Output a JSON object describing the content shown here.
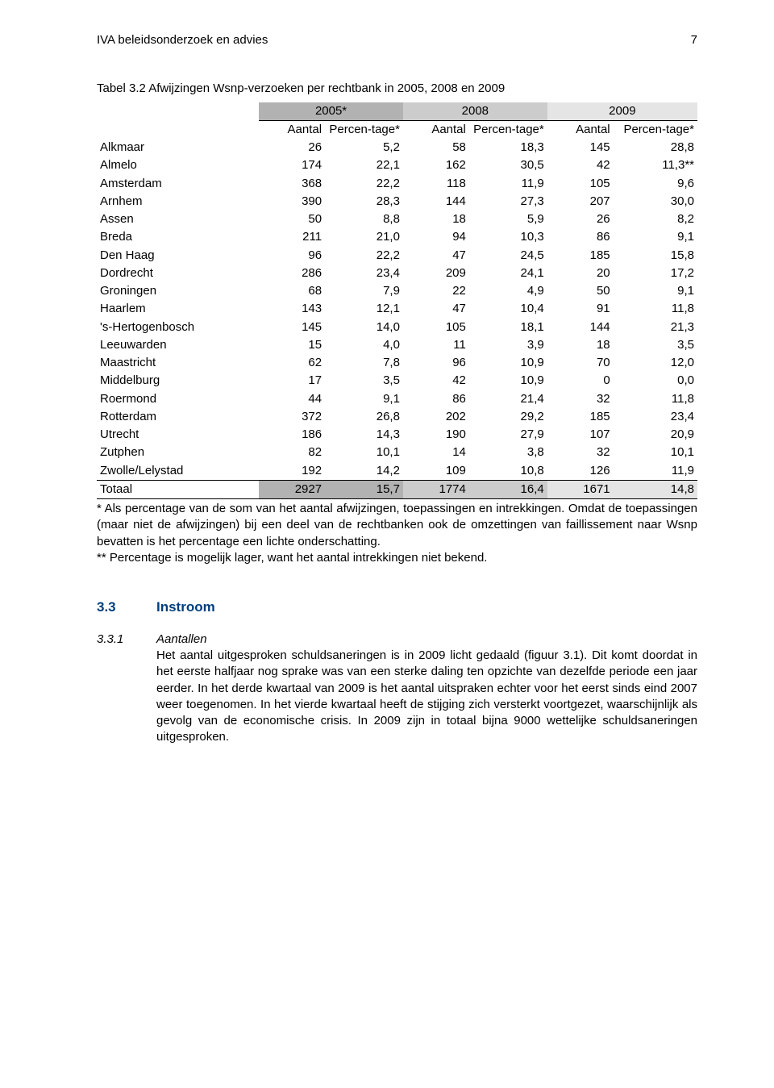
{
  "running_head_left": "IVA beleidsonderzoek en advies",
  "running_head_right": "7",
  "table": {
    "caption": "Tabel 3.2 Afwijzingen Wsnp-verzoeken per rechtbank in 2005, 2008 en 2009",
    "years": [
      "2005*",
      "2008",
      "2009"
    ],
    "subheads": [
      "Aantal",
      "Percen-tage*",
      "Aantal",
      "Percen-tage*",
      "Aantal",
      "Percen-tage*"
    ],
    "year_colors": [
      "#b2b2b2",
      "#cccccc",
      "#e5e5e5"
    ],
    "rows": [
      {
        "label": "Alkmaar",
        "v": [
          "26",
          "5,2",
          "58",
          "18,3",
          "145",
          "28,8"
        ]
      },
      {
        "label": "Almelo",
        "v": [
          "174",
          "22,1",
          "162",
          "30,5",
          "42",
          "11,3**"
        ]
      },
      {
        "label": "Amsterdam",
        "v": [
          "368",
          "22,2",
          "118",
          "11,9",
          "105",
          "9,6"
        ]
      },
      {
        "label": "Arnhem",
        "v": [
          "390",
          "28,3",
          "144",
          "27,3",
          "207",
          "30,0"
        ]
      },
      {
        "label": "Assen",
        "v": [
          "50",
          "8,8",
          "18",
          "5,9",
          "26",
          "8,2"
        ]
      },
      {
        "label": "Breda",
        "v": [
          "211",
          "21,0",
          "94",
          "10,3",
          "86",
          "9,1"
        ]
      },
      {
        "label": "Den Haag",
        "v": [
          "96",
          "22,2",
          "47",
          "24,5",
          "185",
          "15,8"
        ]
      },
      {
        "label": "Dordrecht",
        "v": [
          "286",
          "23,4",
          "209",
          "24,1",
          "20",
          "17,2"
        ]
      },
      {
        "label": "Groningen",
        "v": [
          "68",
          "7,9",
          "22",
          "4,9",
          "50",
          "9,1"
        ]
      },
      {
        "label": "Haarlem",
        "v": [
          "143",
          "12,1",
          "47",
          "10,4",
          "91",
          "11,8"
        ]
      },
      {
        "label": "'s-Hertogenbosch",
        "v": [
          "145",
          "14,0",
          "105",
          "18,1",
          "144",
          "21,3"
        ]
      },
      {
        "label": "Leeuwarden",
        "v": [
          "15",
          "4,0",
          "11",
          "3,9",
          "18",
          "3,5"
        ]
      },
      {
        "label": "Maastricht",
        "v": [
          "62",
          "7,8",
          "96",
          "10,9",
          "70",
          "12,0"
        ]
      },
      {
        "label": "Middelburg",
        "v": [
          "17",
          "3,5",
          "42",
          "10,9",
          "0",
          "0,0"
        ]
      },
      {
        "label": "Roermond",
        "v": [
          "44",
          "9,1",
          "86",
          "21,4",
          "32",
          "11,8"
        ]
      },
      {
        "label": "Rotterdam",
        "v": [
          "372",
          "26,8",
          "202",
          "29,2",
          "185",
          "23,4"
        ]
      },
      {
        "label": "Utrecht",
        "v": [
          "186",
          "14,3",
          "190",
          "27,9",
          "107",
          "20,9"
        ]
      },
      {
        "label": "Zutphen",
        "v": [
          "82",
          "10,1",
          "14",
          "3,8",
          "32",
          "10,1"
        ]
      },
      {
        "label": "Zwolle/Lelystad",
        "v": [
          "192",
          "14,2",
          "109",
          "10,8",
          "126",
          "11,9"
        ]
      }
    ],
    "total": {
      "label": "Totaal",
      "v": [
        "2927",
        "15,7",
        "1774",
        "16,4",
        "1671",
        "14,8"
      ]
    },
    "footnote1": "* Als percentage van de som van het aantal afwijzingen, toepassingen en intrekkingen. Omdat de toepassingen (maar niet de afwijzingen) bij een deel van de rechtbanken ook de omzettingen van faillissement naar Wsnp bevatten is het percentage een lichte onderschatting.",
    "footnote2": "** Percentage is mogelijk lager, want het aantal intrekkingen niet bekend."
  },
  "section": {
    "num": "3.3",
    "title": "Instroom"
  },
  "subsection": {
    "num": "3.3.1",
    "title": "Aantallen",
    "body": "Het aantal uitgesproken schuldsaneringen is in 2009 licht gedaald (figuur 3.1). Dit komt doordat in het eerste halfjaar nog sprake was van een sterke daling ten opzichte van dezelfde periode een jaar eerder. In het derde kwartaal van 2009 is het aantal uitspraken echter voor het eerst sinds eind 2007 weer toegenomen. In het vierde kwartaal heeft de stijging zich versterkt voortgezet, waarschijnlijk als gevolg van de economische crisis. In 2009 zijn in totaal bijna 9000 wettelijke schuldsaneringen uitgesproken."
  }
}
